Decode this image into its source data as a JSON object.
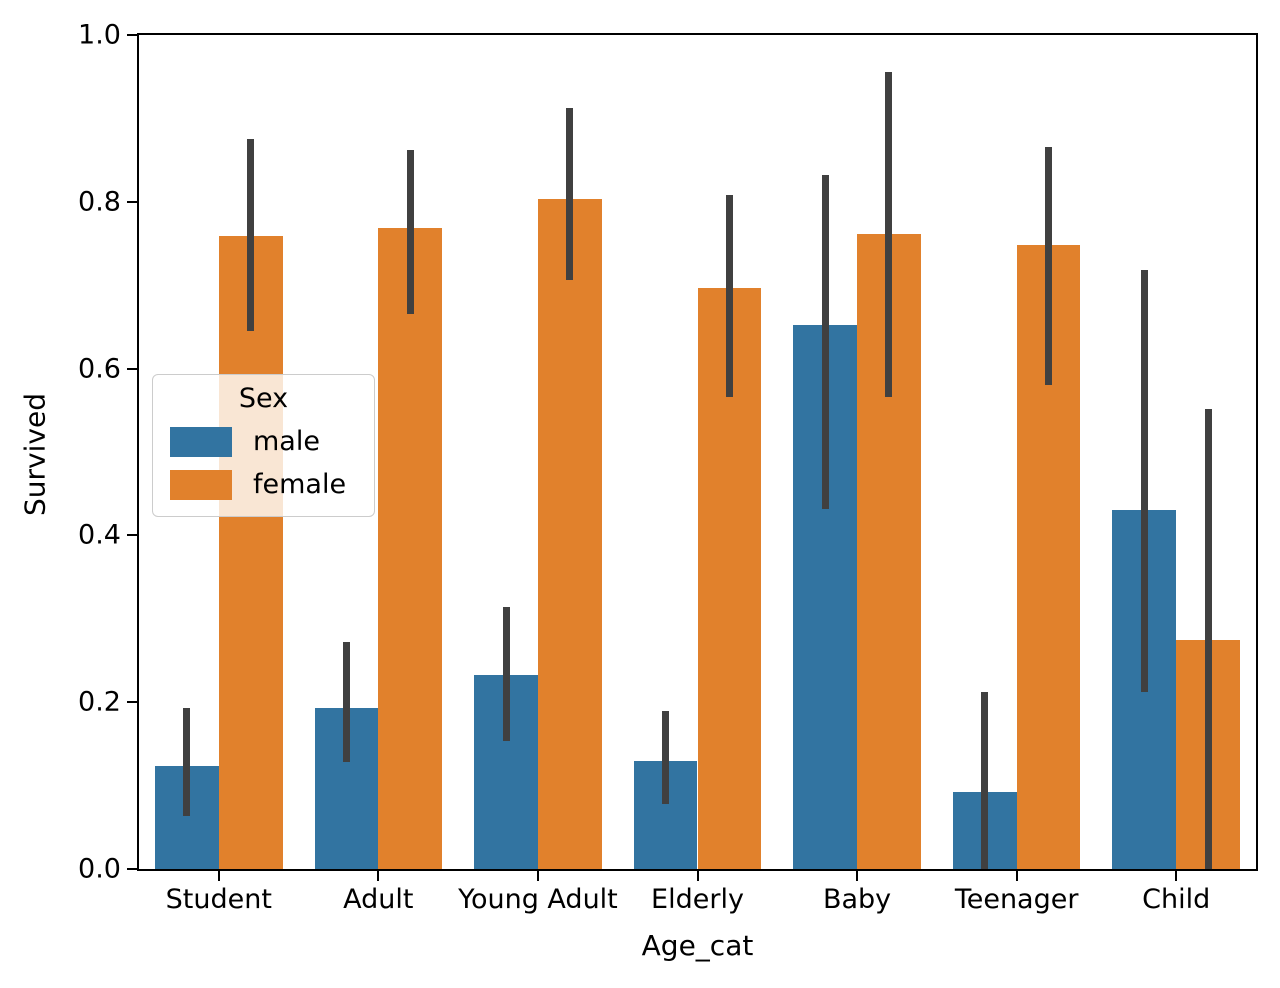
{
  "chart_data": {
    "type": "bar",
    "title": "",
    "xlabel": "Age_cat",
    "ylabel": "Survived",
    "ylim": [
      0.0,
      1.0
    ],
    "ytick_labels": [
      "0.0",
      "0.2",
      "0.4",
      "0.6",
      "0.8",
      "1.0"
    ],
    "grid": false,
    "legend_title": "Sex",
    "legend_loc": "center left",
    "error_bar_color": "#404040",
    "categories": [
      "Student",
      "Adult",
      "Young Adult",
      "Elderly",
      "Baby",
      "Teenager",
      "Child"
    ],
    "series": [
      {
        "name": "male",
        "color": "#3274a1",
        "values": [
          0.123,
          0.193,
          0.233,
          0.13,
          0.652,
          0.092,
          0.431
        ],
        "ci_low": [
          0.063,
          0.128,
          0.153,
          0.078,
          0.432,
          0.0,
          0.212
        ],
        "ci_high": [
          0.193,
          0.272,
          0.314,
          0.189,
          0.832,
          0.212,
          0.718
        ]
      },
      {
        "name": "female",
        "color": "#e1812c",
        "values": [
          0.759,
          0.769,
          0.803,
          0.697,
          0.761,
          0.748,
          0.274
        ],
        "ci_low": [
          0.645,
          0.666,
          0.706,
          0.566,
          0.566,
          0.58,
          0.0
        ],
        "ci_high": [
          0.875,
          0.862,
          0.913,
          0.808,
          0.956,
          0.866,
          0.552
        ]
      }
    ]
  }
}
